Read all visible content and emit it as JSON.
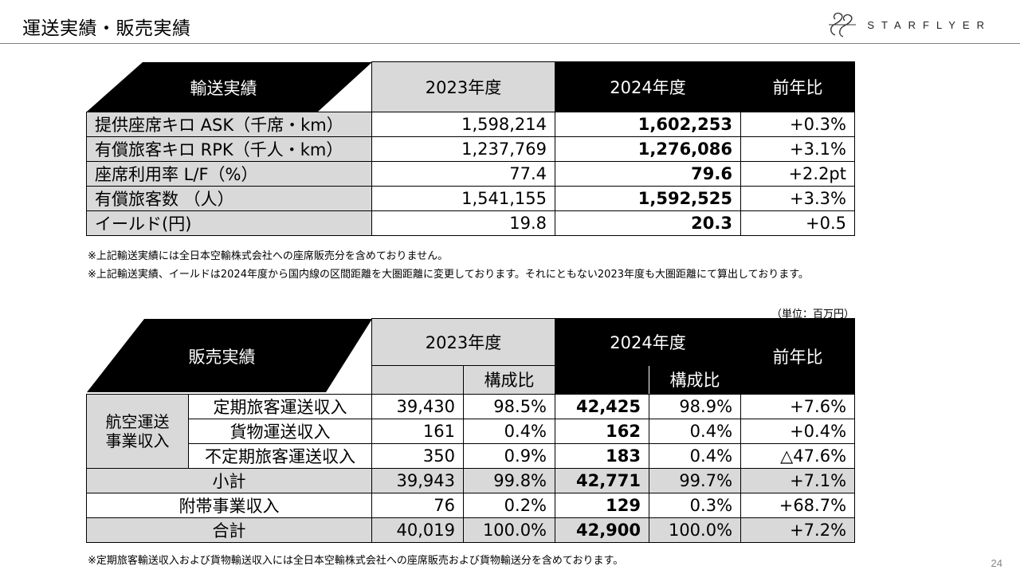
{
  "header": {
    "title": "運送実績・販売実績",
    "brand": "STARFLYER",
    "page_number": "24"
  },
  "transport": {
    "header": {
      "label": "輸送実績",
      "fy2023": "2023年度",
      "fy2024": "2024年度",
      "yoy": "前年比"
    },
    "rows": [
      {
        "label": "提供座席キロ ASK（千席・km）",
        "fy2023": "1,598,214",
        "fy2024": "1,602,253",
        "yoy": "+0.3%"
      },
      {
        "label": "有償旅客キロ RPK（千人・km）",
        "fy2023": "1,237,769",
        "fy2024": "1,276,086",
        "yoy": "+3.1%"
      },
      {
        "label": "座席利用率 L/F（%）",
        "fy2023": "77.4",
        "fy2024": "79.6",
        "yoy": "+2.2pt"
      },
      {
        "label": "有償旅客数 （人）",
        "fy2023": "1,541,155",
        "fy2024": "1,592,525",
        "yoy": "+3.3%"
      },
      {
        "label": "イールド(円)",
        "fy2023": "19.8",
        "fy2024": "20.3",
        "yoy": "+0.5"
      }
    ],
    "notes": [
      "※上記輸送実績には全日本空輸株式会社への座席販売分を含めておりません。",
      "※上記輸送実績、イールドは2024年度から国内線の区間距離を大圏距離に変更しております。それにともない2023年度も大圏距離にて算出しております。"
    ]
  },
  "sales": {
    "unit": "（単位：百万円）",
    "header": {
      "label": "販売実績",
      "fy2023": "2023年度",
      "fy2024": "2024年度",
      "ratio": "構成比",
      "yoy": "前年比"
    },
    "group_label": "航空運送\n事業収入",
    "rows": [
      {
        "label": "定期旅客運送収入",
        "v2023": "39,430",
        "r2023": "98.5%",
        "v2024": "42,425",
        "r2024": "98.9%",
        "yoy": "+7.6%"
      },
      {
        "label": "貨物運送収入",
        "v2023": "161",
        "r2023": "0.4%",
        "v2024": "162",
        "r2024": "0.4%",
        "yoy": "+0.4%"
      },
      {
        "label": "不定期旅客運送収入",
        "v2023": "350",
        "r2023": "0.9%",
        "v2024": "183",
        "r2024": "0.4%",
        "yoy": "△47.6%"
      }
    ],
    "subtotal": {
      "label": "小計",
      "v2023": "39,943",
      "r2023": "99.8%",
      "v2024": "42,771",
      "r2024": "99.7%",
      "yoy": "+7.1%"
    },
    "ancillary": {
      "label": "附帯事業収入",
      "v2023": "76",
      "r2023": "0.2%",
      "v2024": "129",
      "r2024": "0.3%",
      "yoy": "+68.7%"
    },
    "total": {
      "label": "合計",
      "v2023": "40,019",
      "r2023": "100.0%",
      "v2024": "42,900",
      "r2024": "100.0%",
      "yoy": "+7.2%"
    },
    "note": "※定期旅客輸送収入および貨物輸送収入には全日本空輸株式会社への座席販売および貨物輸送分を含めております。"
  }
}
